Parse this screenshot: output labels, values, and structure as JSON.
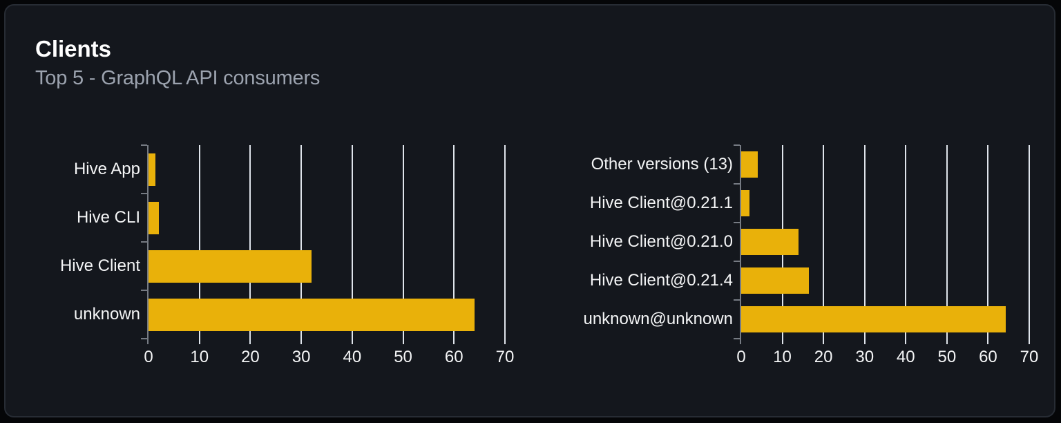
{
  "card": {
    "title": "Clients",
    "subtitle": "Top 5 - GraphQL API consumers"
  },
  "colors": {
    "page_bg": "#050608",
    "card_bg": "#14171d",
    "card_border": "#272c34",
    "bar": "#e9b10a",
    "grid": "#dfe4eb",
    "axis": "#767b83",
    "label": "#f4f5f6",
    "title": "#ffffff",
    "subtitle": "#9ca3af"
  },
  "chart_data": [
    {
      "type": "bar",
      "orientation": "horizontal",
      "title": "",
      "categories": [
        "Hive App",
        "Hive CLI",
        "Hive Client",
        "unknown"
      ],
      "values": [
        1.4,
        2,
        32,
        64
      ],
      "xlim": [
        0,
        70
      ],
      "xticks": [
        0,
        10,
        20,
        30,
        40,
        50,
        60,
        70
      ],
      "grid": true,
      "legend": false
    },
    {
      "type": "bar",
      "orientation": "horizontal",
      "title": "",
      "categories": [
        "Other versions (13)",
        "Hive Client@0.21.1",
        "Hive Client@0.21.0",
        "Hive Client@0.21.4",
        "unknown@unknown"
      ],
      "values": [
        4,
        2,
        14,
        16.5,
        64.3
      ],
      "xlim": [
        0,
        70
      ],
      "xticks": [
        0,
        10,
        20,
        30,
        40,
        50,
        60,
        70
      ],
      "grid": true,
      "legend": false
    }
  ]
}
